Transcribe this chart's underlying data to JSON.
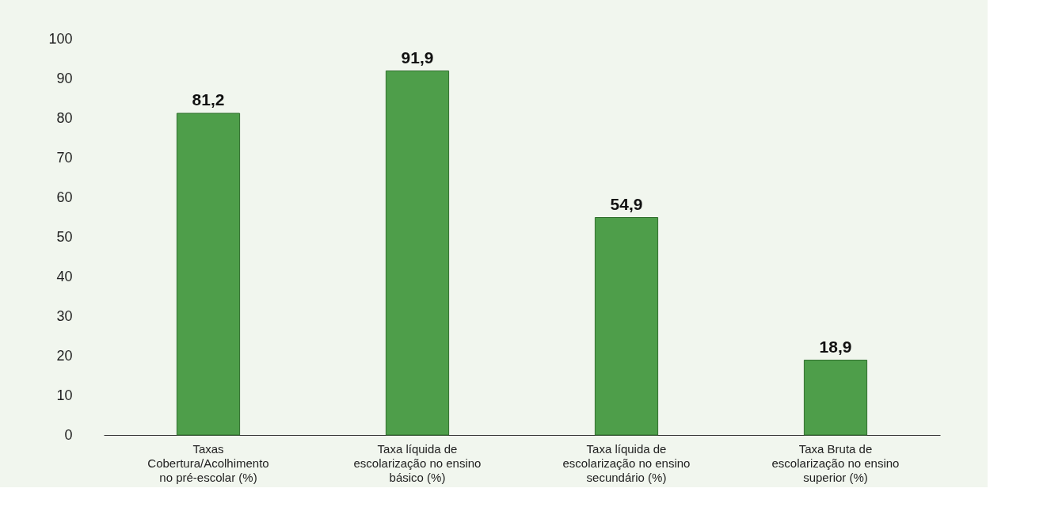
{
  "chart_data": {
    "type": "bar",
    "categories": [
      "Taxas Cobertura/Acolhimento no pré-escolar (%)",
      "Taxa líquida de escolarização no ensino básico (%)",
      "Taxa líquida de escolarização no ensino secundário (%)",
      "Taxa Bruta de escolarização no ensino superior (%)"
    ],
    "values": [
      81.2,
      91.9,
      54.9,
      18.9
    ],
    "value_labels": [
      "81,2",
      "91,9",
      "54,9",
      "18,9"
    ],
    "color": "#4e9e4a",
    "ylim": [
      0,
      100
    ],
    "yticks": [
      0,
      10,
      20,
      30,
      40,
      50,
      60,
      70,
      80,
      90,
      100
    ],
    "grid": false
  }
}
